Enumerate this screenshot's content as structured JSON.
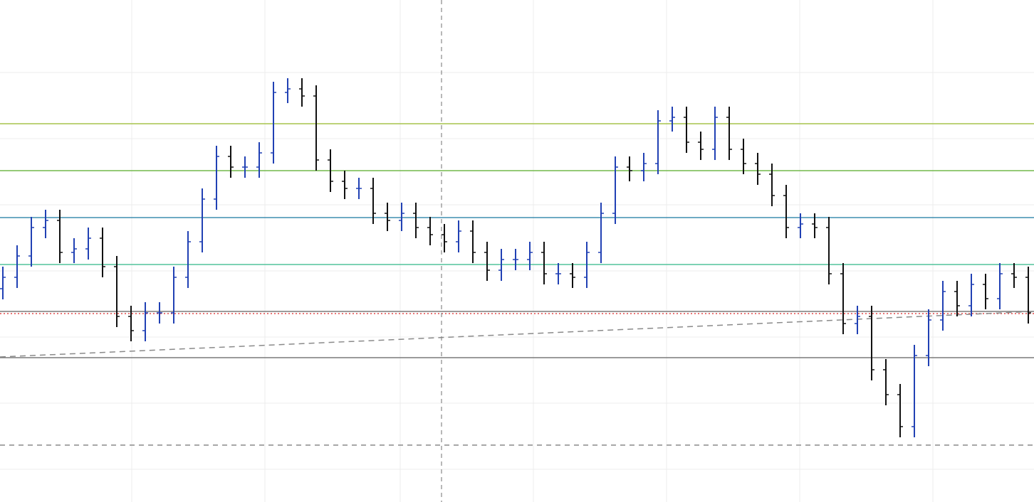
{
  "chart_data": {
    "type": "ohlc",
    "xlim": [
      -0.2,
      72.4
    ],
    "ylim": [
      0,
      706
    ],
    "grid": true,
    "xticks": [
      9.05,
      18.4,
      27.9,
      37.25,
      46.6,
      55.95,
      65.3
    ],
    "yticks": [
      46,
      139,
      232,
      325,
      418,
      511,
      604
    ],
    "up_color": "#2141b4",
    "down_color": "#111111",
    "open": [
      300,
      316,
      346,
      386,
      396,
      351,
      356,
      371,
      331,
      261,
      241,
      266,
      266,
      316,
      366,
      426,
      486,
      471,
      471,
      491,
      576,
      581,
      571,
      481,
      451,
      441,
      441,
      406,
      396,
      406,
      386,
      376,
      366,
      381,
      351,
      326,
      341,
      341,
      351,
      321,
      321,
      316,
      351,
      406,
      471,
      466,
      476,
      536,
      541,
      506,
      496,
      541,
      496,
      476,
      461,
      431,
      386,
      391,
      386,
      321,
      251,
      261,
      186,
      151,
      106,
      206,
      256,
      296,
      276,
      306,
      286,
      321,
      316
    ],
    "high": [
      331,
      361,
      401,
      411,
      411,
      371,
      386,
      386,
      346,
      276,
      281,
      281,
      331,
      381,
      441,
      501,
      501,
      486,
      506,
      591,
      596,
      596,
      586,
      496,
      466,
      456,
      456,
      421,
      421,
      421,
      401,
      391,
      396,
      396,
      366,
      356,
      356,
      366,
      366,
      336,
      336,
      366,
      421,
      486,
      486,
      491,
      551,
      556,
      556,
      521,
      556,
      556,
      511,
      491,
      476,
      446,
      406,
      406,
      401,
      336,
      276,
      276,
      201,
      166,
      221,
      271,
      311,
      311,
      321,
      321,
      336,
      336,
      331
    ],
    "low": [
      285,
      301,
      331,
      371,
      336,
      336,
      341,
      316,
      246,
      226,
      226,
      251,
      251,
      301,
      351,
      411,
      456,
      456,
      456,
      476,
      561,
      556,
      466,
      436,
      426,
      426,
      391,
      381,
      381,
      371,
      361,
      351,
      351,
      336,
      311,
      311,
      326,
      326,
      306,
      306,
      301,
      301,
      336,
      391,
      451,
      451,
      461,
      521,
      491,
      481,
      481,
      481,
      461,
      446,
      416,
      371,
      371,
      371,
      306,
      236,
      236,
      171,
      136,
      91,
      91,
      191,
      241,
      261,
      261,
      271,
      271,
      301,
      251
    ],
    "close": [
      316,
      346,
      386,
      396,
      351,
      356,
      371,
      331,
      261,
      241,
      266,
      266,
      316,
      366,
      426,
      486,
      471,
      471,
      491,
      576,
      581,
      571,
      481,
      451,
      441,
      441,
      406,
      396,
      406,
      386,
      376,
      366,
      381,
      351,
      326,
      341,
      341,
      351,
      321,
      321,
      316,
      351,
      406,
      471,
      466,
      476,
      536,
      541,
      506,
      496,
      541,
      496,
      476,
      461,
      431,
      386,
      391,
      386,
      321,
      251,
      261,
      186,
      151,
      106,
      206,
      256,
      296,
      276,
      306,
      286,
      321,
      316,
      266
    ],
    "levels": [
      {
        "value": 532,
        "color": "#a6c44c",
        "style": "solid"
      },
      {
        "value": 466,
        "color": "#72b84a",
        "style": "solid"
      },
      {
        "value": 400,
        "color": "#3f8db0",
        "style": "solid"
      },
      {
        "value": 334,
        "color": "#52c49c",
        "style": "solid"
      },
      {
        "value": 268,
        "color": "#7a7a7a",
        "style": "solid"
      },
      {
        "value": 265,
        "color": "#e04848",
        "style": "dotted"
      },
      {
        "value": 203,
        "color": "#7a7a7a",
        "style": "solid"
      },
      {
        "value": 80,
        "color": "#8a8a8a",
        "style": "dashed"
      }
    ],
    "trendline": {
      "x": [
        -0.2,
        72.4
      ],
      "y": [
        204,
        268
      ],
      "color": "#8a8a8a"
    },
    "crosshair_x": 30.8
  }
}
